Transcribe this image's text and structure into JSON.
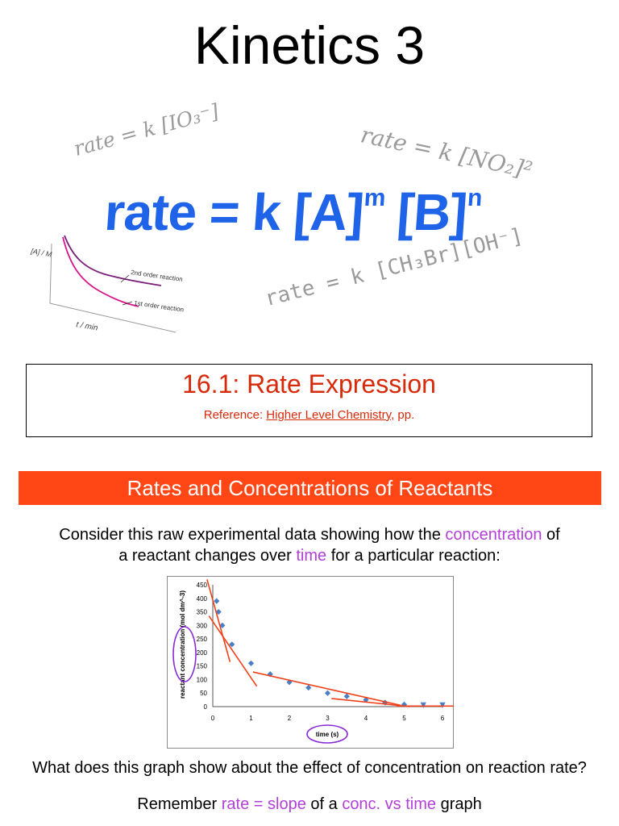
{
  "slide": {
    "title": "Kinetics 3",
    "formulas": {
      "io3": "rate = k [IO₃⁻]",
      "no2": "rate = k [NO₂]²",
      "ch3br": "rate = k [CH₃Br][OH⁻]",
      "main_base": "rate = k [A]",
      "main_m": "m",
      "main_b": " [B]",
      "main_n": "n"
    },
    "mini_graph": {
      "ylabel": "[A] / M",
      "xlabel": "t / min",
      "label_2nd": "2nd order reaction",
      "label_1st": "1st order reaction",
      "colors": {
        "second": "#7a1f7a",
        "first": "#d8188c"
      }
    },
    "section": {
      "title": "16.1:  Rate Expression",
      "reference_prefix": "Reference:  ",
      "reference_book": "Higher Level Chemistry",
      "reference_suffix": ", pp."
    },
    "banner": {
      "text": "Rates and Concentrations of Reactants",
      "color": "#ff4614"
    },
    "intro": {
      "part1": "Consider this raw experimental data showing how the ",
      "hl1": "concentration",
      "part2": " of",
      "part3": "a reactant changes over ",
      "hl2": "time",
      "part4": " for a particular reaction:"
    },
    "question": "What does this graph show about the effect of concentration on reaction rate?",
    "remember": {
      "part1": "Remember ",
      "hl1": "rate = slope",
      "part2": " of a ",
      "hl2": "conc. vs time",
      "part3": " graph"
    },
    "accent_color": "#b23fd8"
  },
  "chart_data": {
    "type": "scatter",
    "xlabel": "time (s)",
    "ylabel": "reactant concentration (mol dm^-3)",
    "xlim": [
      0,
      6
    ],
    "ylim": [
      0,
      450
    ],
    "xticks": [
      0,
      1,
      2,
      3,
      4,
      5,
      6
    ],
    "yticks": [
      0,
      50,
      100,
      150,
      200,
      250,
      300,
      350,
      400,
      450
    ],
    "series": [
      {
        "x": [
          0.1,
          0.15,
          0.25,
          0.5,
          1.0,
          1.5,
          2.0,
          2.5,
          3.0,
          3.5,
          4.0,
          4.5,
          5.0,
          5.5,
          6.0
        ],
        "y": [
          390,
          350,
          300,
          230,
          160,
          120,
          90,
          70,
          50,
          38,
          25,
          15,
          8,
          5,
          5
        ]
      }
    ],
    "tangents": [
      {
        "x": [
          -0.15,
          0.45
        ],
        "y": [
          470,
          165
        ]
      },
      {
        "x": [
          -0.1,
          1.15
        ],
        "y": [
          335,
          75
        ]
      },
      {
        "x": [
          1.05,
          4.9
        ],
        "y": [
          128,
          5
        ]
      },
      {
        "x": [
          3.1,
          5.15
        ],
        "y": [
          30,
          0
        ]
      },
      {
        "x": [
          4.8,
          6.7
        ],
        "y": [
          2,
          2
        ]
      }
    ],
    "marker_color": "#4a7fc4",
    "tangent_color": "#f0401a",
    "highlight_color": "#8a2bd8"
  }
}
